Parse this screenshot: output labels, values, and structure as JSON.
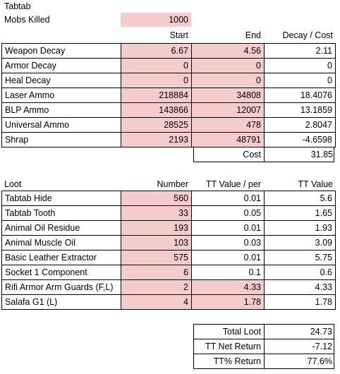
{
  "header": {
    "title": "Tabtab",
    "mobs_label": "Mobs Killed",
    "mobs_value": "1000"
  },
  "costs": {
    "columns": [
      "Start",
      "End",
      "Decay / Cost"
    ],
    "rows": [
      {
        "label": "Weapon Decay",
        "start": "6.67",
        "end": "4.56",
        "decay": "2.11"
      },
      {
        "label": "Armor Decay",
        "start": "0",
        "end": "0",
        "decay": "0"
      },
      {
        "label": "Heal Decay",
        "start": "0",
        "end": "0",
        "decay": "0"
      },
      {
        "label": "Laser Ammo",
        "start": "218884",
        "end": "34808",
        "decay": "18.4076"
      },
      {
        "label": "BLP Ammo",
        "start": "143866",
        "end": "12007",
        "decay": "13.1859"
      },
      {
        "label": "Universal Ammo",
        "start": "28525",
        "end": "478",
        "decay": "2.8047"
      },
      {
        "label": "Shrap",
        "start": "2193",
        "end": "48791",
        "decay": "-4.6598"
      }
    ],
    "cost_label": "Cost",
    "cost_value": "31.85"
  },
  "loot": {
    "columns": [
      "Loot",
      "Number",
      "TT Value / per",
      "TT Value"
    ],
    "rows": [
      {
        "label": "Tabtab Hide",
        "number": "560",
        "per": "0.01",
        "value": "5.6"
      },
      {
        "label": "Tabtab Tooth",
        "number": "33",
        "per": "0.05",
        "value": "1.65"
      },
      {
        "label": "Animal Oil Residue",
        "number": "193",
        "per": "0.01",
        "value": "1.93"
      },
      {
        "label": "Animal Muscle Oil",
        "number": "103",
        "per": "0.03",
        "value": "3.09"
      },
      {
        "label": "Basic Leather Extractor",
        "number": "575",
        "per": "0.01",
        "value": "5.75"
      },
      {
        "label": "Socket 1 Component",
        "number": "6",
        "per": "0.1",
        "value": "0.6"
      },
      {
        "label": "Rifi Armor Arm Guards (F,L)",
        "number": "2",
        "per": "4.33",
        "value": "4.33"
      },
      {
        "label": "Salafa G1 (L)",
        "number": "4",
        "per": "1.78",
        "value": "1.78"
      }
    ]
  },
  "summary": [
    {
      "label": "Total Loot",
      "value": "24.73"
    },
    {
      "label": "TT Net Return",
      "value": "-7.12"
    },
    {
      "label": "TT% Return",
      "value": "77.6%"
    }
  ],
  "colors": {
    "input_fill": "#f4cccc"
  }
}
